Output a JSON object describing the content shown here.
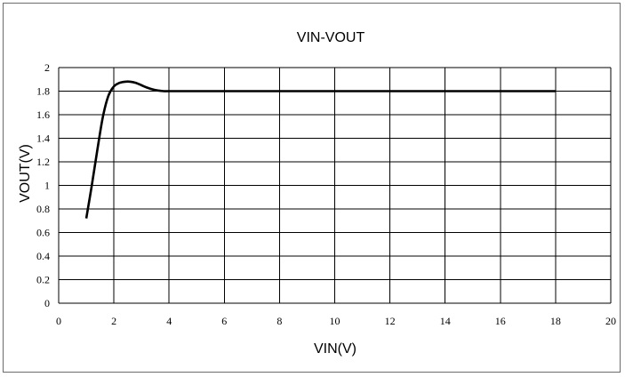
{
  "chart_data": {
    "type": "line",
    "title": "VIN-VOUT",
    "xlabel": "VIN(V)",
    "ylabel": "VOUT(V)",
    "xlim": [
      0,
      20
    ],
    "ylim": [
      0,
      2
    ],
    "xticks": [
      0,
      2,
      4,
      6,
      8,
      10,
      12,
      14,
      16,
      18,
      20
    ],
    "yticks": [
      0,
      0.2,
      0.4,
      0.6,
      0.8,
      1,
      1.2,
      1.4,
      1.6,
      1.8,
      2
    ],
    "grid": true,
    "series": [
      {
        "color": "#000000",
        "x": [
          1.0,
          1.2,
          1.4,
          1.6,
          1.8,
          2.0,
          2.2,
          2.4,
          2.6,
          2.8,
          3.0,
          3.2,
          3.4,
          3.6,
          3.8,
          4.0,
          5,
          6,
          8,
          10,
          12,
          14,
          16,
          18
        ],
        "y": [
          0.72,
          1.0,
          1.3,
          1.58,
          1.76,
          1.84,
          1.87,
          1.88,
          1.88,
          1.87,
          1.85,
          1.83,
          1.815,
          1.805,
          1.8,
          1.8,
          1.8,
          1.8,
          1.8,
          1.8,
          1.8,
          1.8,
          1.8,
          1.8
        ]
      }
    ]
  }
}
